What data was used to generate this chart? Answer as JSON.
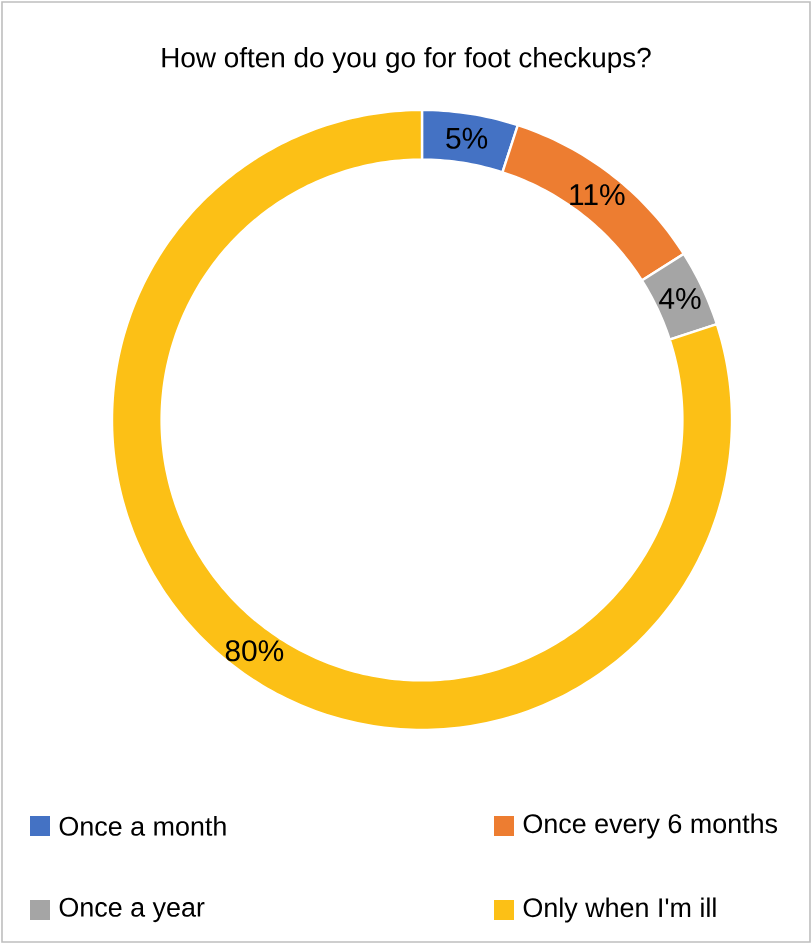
{
  "chart_data": {
    "type": "donut",
    "title": "How often do you go for foot checkups?",
    "categories": [
      "Once a month",
      "Once every 6 months",
      "Once a year",
      "Only when I'm ill"
    ],
    "values": [
      5,
      11,
      4,
      80
    ],
    "value_labels": [
      "5%",
      "11%",
      "4%",
      "80%"
    ],
    "colors": [
      "#4472c4",
      "#ed7d31",
      "#a5a5a5",
      "#fcc016"
    ],
    "legend": "bottom"
  }
}
